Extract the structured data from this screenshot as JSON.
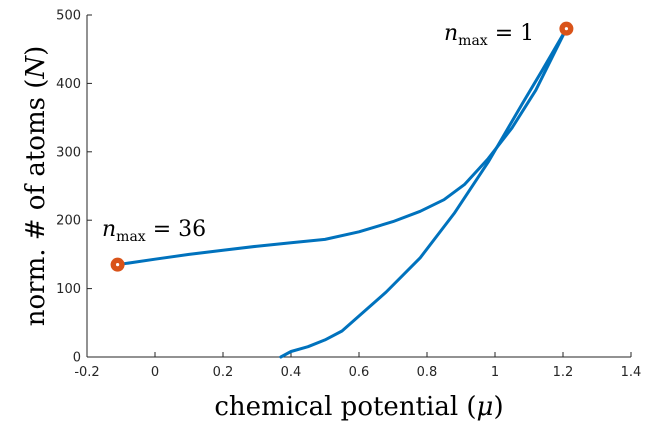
{
  "chart_data": {
    "type": "line",
    "xlabel_text": "chemical potential (",
    "xlabel_symbol": "μ",
    "xlabel_close": ")",
    "ylabel_text": "norm. # of atoms (",
    "ylabel_symbol": "N",
    "ylabel_close": ")",
    "xlim": [
      -0.2,
      1.4
    ],
    "ylim": [
      0,
      500
    ],
    "xticks": [
      -0.2,
      0,
      0.2,
      0.4,
      0.6,
      0.8,
      1,
      1.2,
      1.4
    ],
    "xtick_labels": [
      "-0.2",
      "0",
      "0.2",
      "0.4",
      "0.6",
      "0.8",
      "1",
      "1.2",
      "1.4"
    ],
    "yticks": [
      0,
      100,
      200,
      300,
      400,
      500
    ],
    "ytick_labels": [
      "0",
      "100",
      "200",
      "300",
      "400",
      "500"
    ],
    "line_color": "#0072BD",
    "marker_color": "#D95319",
    "series": [
      {
        "x": [
          0.37,
          0.4,
          0.45,
          0.5,
          0.55,
          0.6,
          0.68,
          0.78,
          0.88,
          0.98,
          1.08,
          1.14,
          1.21
        ],
        "y": [
          0,
          8,
          15,
          25,
          38,
          60,
          95,
          145,
          210,
          285,
          370,
          420,
          480
        ]
      },
      {
        "x": [
          -0.11,
          0,
          0.1,
          0.2,
          0.3,
          0.4,
          0.5,
          0.6,
          0.7,
          0.78,
          0.85,
          0.91,
          0.98,
          1.05,
          1.12,
          1.21
        ],
        "y": [
          135,
          143,
          150,
          156,
          162,
          167,
          172,
          183,
          198,
          213,
          230,
          252,
          290,
          335,
          390,
          480
        ]
      }
    ],
    "markers": [
      {
        "x": 1.21,
        "y": 480
      },
      {
        "x": -0.11,
        "y": 135
      }
    ],
    "annotations": [
      {
        "var": "n",
        "sub": "max",
        "rest": " = 1"
      },
      {
        "var": "n",
        "sub": "max",
        "rest": " = 36"
      }
    ]
  }
}
